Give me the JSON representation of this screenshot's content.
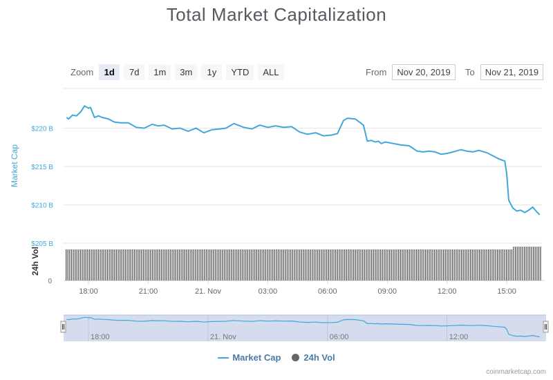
{
  "chart_data": {
    "type": "line",
    "title": "Total Market Capitalization",
    "series": [
      {
        "name": "Market Cap",
        "color": "#3fa7d9",
        "x_hours": [
          16.9,
          17.0,
          17.2,
          17.4,
          17.6,
          17.8,
          18.0,
          18.1,
          18.3,
          18.5,
          18.7,
          19.0,
          19.3,
          19.6,
          20.0,
          20.4,
          20.8,
          21.2,
          21.5,
          21.8,
          22.2,
          22.6,
          23.0,
          23.4,
          23.8,
          24.2,
          24.6,
          24.9,
          25.3,
          25.8,
          26.2,
          26.6,
          27.0,
          27.4,
          27.8,
          28.2,
          28.6,
          29.0,
          29.4,
          29.8,
          30.2,
          30.5,
          30.8,
          31.0,
          31.4,
          31.8,
          31.85,
          32.0,
          32.2,
          32.4,
          32.55,
          32.7,
          32.9,
          33.3,
          33.7,
          34.1,
          34.5,
          34.8,
          35.1,
          35.4,
          35.7,
          36.0,
          36.3,
          36.7,
          37.0,
          37.3,
          37.6,
          38.0,
          38.3,
          38.6,
          38.9,
          39.0,
          39.1,
          39.2,
          39.3,
          39.5,
          39.7,
          39.9,
          40.1,
          40.3,
          40.5,
          40.65
        ],
        "values": [
          221.4,
          221.2,
          221.7,
          221.6,
          222.1,
          222.9,
          222.6,
          222.7,
          221.4,
          221.6,
          221.4,
          221.2,
          220.8,
          220.7,
          220.7,
          220.1,
          220.0,
          220.5,
          220.3,
          220.4,
          219.9,
          220.0,
          219.6,
          220.0,
          219.4,
          219.8,
          219.9,
          220.0,
          220.6,
          220.1,
          219.9,
          220.4,
          220.1,
          220.3,
          220.1,
          220.2,
          219.5,
          219.2,
          219.4,
          219.0,
          219.1,
          219.3,
          221.0,
          221.3,
          221.2,
          220.4,
          219.9,
          218.3,
          218.4,
          218.2,
          218.3,
          218.0,
          218.2,
          218.0,
          217.8,
          217.7,
          217.0,
          216.9,
          217.0,
          216.9,
          216.6,
          216.7,
          216.9,
          217.2,
          217.0,
          216.9,
          217.1,
          216.8,
          216.4,
          216.0,
          215.7,
          214.0,
          210.6,
          210.1,
          209.6,
          209.2,
          209.3,
          209.0,
          209.3,
          209.7,
          209.1,
          208.7
        ]
      },
      {
        "name": "24h Vol",
        "color": "#666666",
        "type": "column"
      }
    ],
    "y_axis": {
      "label": "Market Cap",
      "ticks": [
        "$205 B",
        "$210 B",
        "$215 B",
        "$220 B"
      ],
      "range": [
        205,
        225
      ]
    },
    "y2_axis": {
      "label": "24h Vol",
      "ticks": [
        "0"
      ]
    },
    "x_axis": {
      "ticks": [
        "18:00",
        "21:00",
        "21. Nov",
        "03:00",
        "06:00",
        "09:00",
        "12:00",
        "15:00"
      ],
      "tick_hours": [
        18,
        21,
        24,
        27,
        30,
        33,
        36,
        39
      ],
      "range_hours": [
        16.75,
        40.8
      ]
    },
    "navigator_ticks": [
      "18:00",
      "21. Nov",
      "06:00",
      "12:00"
    ],
    "navigator_tick_hours": [
      18,
      24,
      30,
      36
    ]
  },
  "ui": {
    "zoom_label": "Zoom",
    "zoom_options": [
      "1d",
      "7d",
      "1m",
      "3m",
      "1y",
      "YTD",
      "ALL"
    ],
    "zoom_active": "1d",
    "from_label": "From",
    "from_value": "Nov 20, 2019",
    "to_label": "To",
    "to_value": "Nov 21, 2019",
    "legend_market_cap": "Market Cap",
    "legend_volume": "24h Vol",
    "credit": "coinmarketcap.com"
  }
}
